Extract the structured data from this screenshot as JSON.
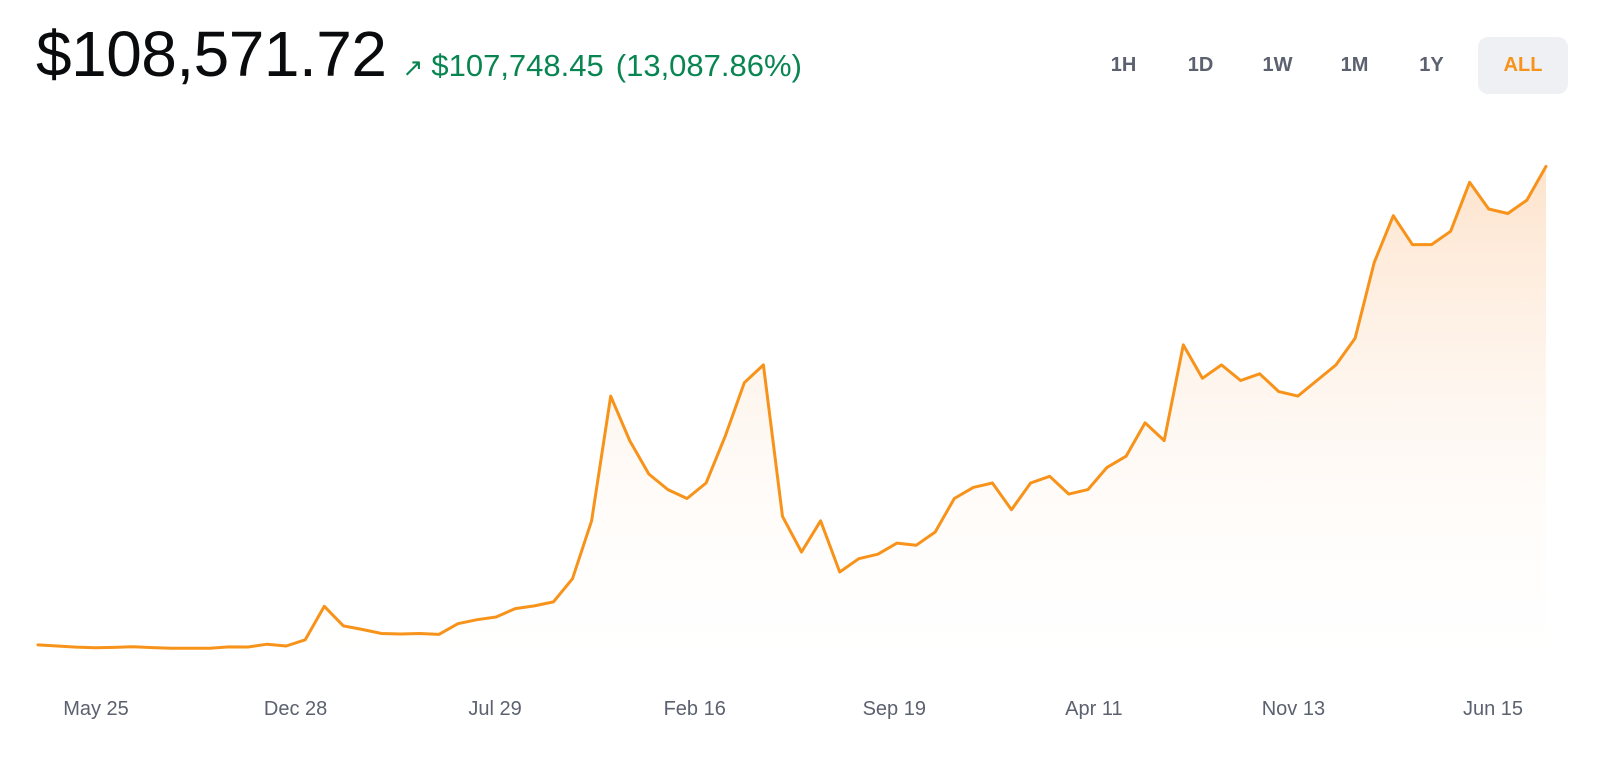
{
  "header": {
    "price": "$108,571.72",
    "change_arrow": "↗",
    "change_amount": "$107,748.45",
    "change_percent": "(13,087.86%)",
    "change_color": "#098551"
  },
  "range_selector": {
    "options": [
      "1H",
      "1D",
      "1W",
      "1M",
      "1Y",
      "ALL"
    ],
    "selected": "ALL"
  },
  "colors": {
    "line": "#f7931a",
    "fill_top": "#fde3cc",
    "fill_bottom": "#ffffff",
    "active_tab_bg": "#eef0f3"
  },
  "chart_data": {
    "type": "area",
    "x_tick_labels": [
      "May 25",
      "Dec 28",
      "Jul 29",
      "Feb 16",
      "Sep 19",
      "Apr 11",
      "Nov 13",
      "Jun 15"
    ],
    "x_tick_positions": [
      0.5,
      4.6,
      8.8,
      12.9,
      17.0,
      21.0,
      25.1,
      29.2
    ],
    "y_range": [
      0,
      110000
    ],
    "series": [
      {
        "values": [
          1150,
          900,
          650,
          520,
          590,
          750,
          530,
          380,
          380,
          390,
          700,
          680,
          1300,
          900,
          2300,
          9800,
          5400,
          4600,
          3700,
          3600,
          3700,
          3500,
          5900,
          6800,
          7400,
          9300,
          9900,
          10800,
          16000,
          29000,
          57000,
          47000,
          39500,
          36000,
          34000,
          37500,
          48000,
          60000,
          64000,
          30000,
          22000,
          29000,
          17500,
          20500,
          21500,
          24000,
          23500,
          26500,
          34000,
          36500,
          37500,
          31500,
          37500,
          39000,
          35000,
          36000,
          41000,
          43500,
          51000,
          47000,
          68500,
          61000,
          64000,
          60500,
          62000,
          58000,
          57000,
          60500,
          64000,
          70000,
          87000,
          97500,
          91000,
          91000,
          94000,
          105000,
          99000,
          98000,
          101000,
          108571.72
        ]
      }
    ]
  }
}
